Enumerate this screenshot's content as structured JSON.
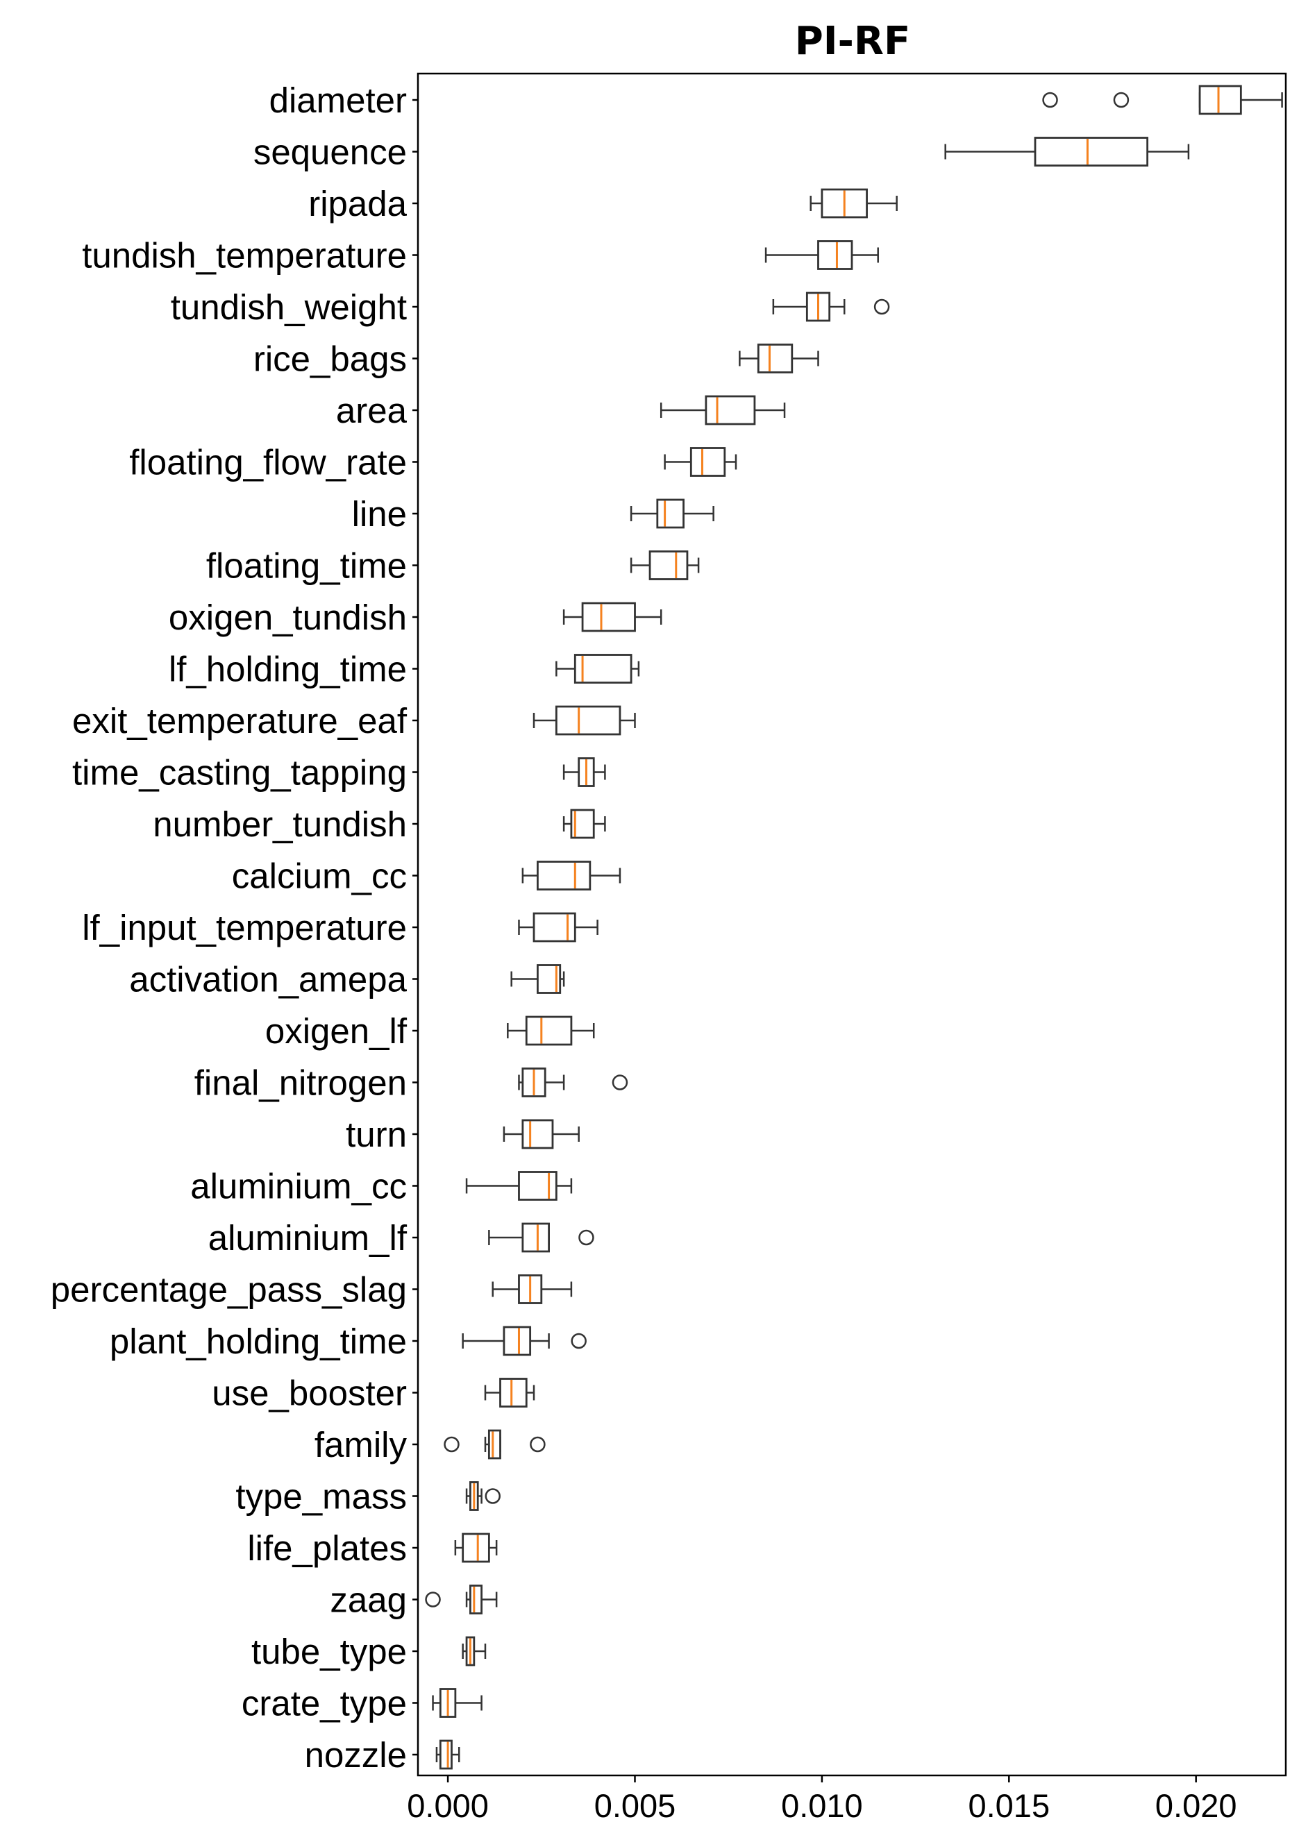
{
  "chart_data": {
    "type": "boxplot",
    "orientation": "horizontal",
    "title": "PI-RF",
    "xlabel": "",
    "ylabel": "",
    "xlim": [
      -0.0008,
      0.0224
    ],
    "x_ticks": [
      0.0,
      0.005,
      0.01,
      0.015,
      0.02
    ],
    "x_tick_labels": [
      "0.000",
      "0.005",
      "0.010",
      "0.015",
      "0.020"
    ],
    "grid": false,
    "colors": {
      "box": "#333333",
      "median": "#f5821f",
      "frame": "#000000"
    },
    "categories": [
      "diameter",
      "sequence",
      "ripada",
      "tundish_temperature",
      "tundish_weight",
      "rice_bags",
      "area",
      "floating_flow_rate",
      "line",
      "floating_time",
      "oxigen_tundish",
      "lf_holding_time",
      "exit_temperature_eaf",
      "time_casting_tapping",
      "number_tundish",
      "calcium_cc",
      "lf_input_temperature",
      "activation_amepa",
      "oxigen_lf",
      "final_nitrogen",
      "turn",
      "aluminium_cc",
      "aluminium_lf",
      "percentage_pass_slag",
      "plant_holding_time",
      "use_booster",
      "family",
      "type_mass",
      "life_plates",
      "zaag",
      "tube_type",
      "crate_type",
      "nozzle"
    ],
    "boxes": [
      {
        "label": "diameter",
        "whislo": 0.0201,
        "q1": 0.0201,
        "med": 0.0206,
        "q3": 0.0212,
        "whishi": 0.0223,
        "fliers": [
          0.0161,
          0.018
        ]
      },
      {
        "label": "sequence",
        "whislo": 0.0133,
        "q1": 0.0157,
        "med": 0.0171,
        "q3": 0.0187,
        "whishi": 0.0198,
        "fliers": []
      },
      {
        "label": "ripada",
        "whislo": 0.0097,
        "q1": 0.01,
        "med": 0.0106,
        "q3": 0.0112,
        "whishi": 0.012,
        "fliers": []
      },
      {
        "label": "tundish_temperature",
        "whislo": 0.0085,
        "q1": 0.0099,
        "med": 0.0104,
        "q3": 0.0108,
        "whishi": 0.0115,
        "fliers": []
      },
      {
        "label": "tundish_weight",
        "whislo": 0.0087,
        "q1": 0.0096,
        "med": 0.0099,
        "q3": 0.0102,
        "whishi": 0.0106,
        "fliers": [
          0.0116
        ]
      },
      {
        "label": "rice_bags",
        "whislo": 0.0078,
        "q1": 0.0083,
        "med": 0.0086,
        "q3": 0.0092,
        "whishi": 0.0099,
        "fliers": []
      },
      {
        "label": "area",
        "whislo": 0.0057,
        "q1": 0.0069,
        "med": 0.0072,
        "q3": 0.0082,
        "whishi": 0.009,
        "fliers": []
      },
      {
        "label": "floating_flow_rate",
        "whislo": 0.0058,
        "q1": 0.0065,
        "med": 0.0068,
        "q3": 0.0074,
        "whishi": 0.0077,
        "fliers": []
      },
      {
        "label": "line",
        "whislo": 0.0049,
        "q1": 0.0056,
        "med": 0.0058,
        "q3": 0.0063,
        "whishi": 0.0071,
        "fliers": []
      },
      {
        "label": "floating_time",
        "whislo": 0.0049,
        "q1": 0.0054,
        "med": 0.0061,
        "q3": 0.0064,
        "whishi": 0.0067,
        "fliers": []
      },
      {
        "label": "oxigen_tundish",
        "whislo": 0.0031,
        "q1": 0.0036,
        "med": 0.0041,
        "q3": 0.005,
        "whishi": 0.0057,
        "fliers": []
      },
      {
        "label": "lf_holding_time",
        "whislo": 0.0029,
        "q1": 0.0034,
        "med": 0.0036,
        "q3": 0.0049,
        "whishi": 0.0051,
        "fliers": []
      },
      {
        "label": "exit_temperature_eaf",
        "whislo": 0.0023,
        "q1": 0.0029,
        "med": 0.0035,
        "q3": 0.0046,
        "whishi": 0.005,
        "fliers": []
      },
      {
        "label": "time_casting_tapping",
        "whislo": 0.0031,
        "q1": 0.0035,
        "med": 0.0037,
        "q3": 0.0039,
        "whishi": 0.0042,
        "fliers": []
      },
      {
        "label": "number_tundish",
        "whislo": 0.0031,
        "q1": 0.0033,
        "med": 0.0034,
        "q3": 0.0039,
        "whishi": 0.0042,
        "fliers": []
      },
      {
        "label": "calcium_cc",
        "whislo": 0.002,
        "q1": 0.0024,
        "med": 0.0034,
        "q3": 0.0038,
        "whishi": 0.0046,
        "fliers": []
      },
      {
        "label": "lf_input_temperature",
        "whislo": 0.0019,
        "q1": 0.0023,
        "med": 0.0032,
        "q3": 0.0034,
        "whishi": 0.004,
        "fliers": []
      },
      {
        "label": "activation_amepa",
        "whislo": 0.0017,
        "q1": 0.0024,
        "med": 0.0029,
        "q3": 0.003,
        "whishi": 0.0031,
        "fliers": []
      },
      {
        "label": "oxigen_lf",
        "whislo": 0.0016,
        "q1": 0.0021,
        "med": 0.0025,
        "q3": 0.0033,
        "whishi": 0.0039,
        "fliers": []
      },
      {
        "label": "final_nitrogen",
        "whislo": 0.0019,
        "q1": 0.002,
        "med": 0.0023,
        "q3": 0.0026,
        "whishi": 0.0031,
        "fliers": [
          0.0046
        ]
      },
      {
        "label": "turn",
        "whislo": 0.0015,
        "q1": 0.002,
        "med": 0.0022,
        "q3": 0.0028,
        "whishi": 0.0035,
        "fliers": []
      },
      {
        "label": "aluminium_cc",
        "whislo": 0.0005,
        "q1": 0.0019,
        "med": 0.0027,
        "q3": 0.0029,
        "whishi": 0.0033,
        "fliers": []
      },
      {
        "label": "aluminium_lf",
        "whislo": 0.0011,
        "q1": 0.002,
        "med": 0.0024,
        "q3": 0.0027,
        "whishi": 0.0027,
        "fliers": [
          0.0037
        ]
      },
      {
        "label": "percentage_pass_slag",
        "whislo": 0.0012,
        "q1": 0.0019,
        "med": 0.0022,
        "q3": 0.0025,
        "whishi": 0.0033,
        "fliers": []
      },
      {
        "label": "plant_holding_time",
        "whislo": 0.0004,
        "q1": 0.0015,
        "med": 0.0019,
        "q3": 0.0022,
        "whishi": 0.0027,
        "fliers": [
          0.0035
        ]
      },
      {
        "label": "use_booster",
        "whislo": 0.001,
        "q1": 0.0014,
        "med": 0.0017,
        "q3": 0.0021,
        "whishi": 0.0023,
        "fliers": []
      },
      {
        "label": "family",
        "whislo": 0.001,
        "q1": 0.0011,
        "med": 0.0012,
        "q3": 0.0014,
        "whishi": 0.0014,
        "fliers": [
          0.0001,
          0.0024
        ]
      },
      {
        "label": "type_mass",
        "whislo": 0.0005,
        "q1": 0.0006,
        "med": 0.0007,
        "q3": 0.0008,
        "whishi": 0.0009,
        "fliers": [
          0.0012
        ]
      },
      {
        "label": "life_plates",
        "whislo": 0.0002,
        "q1": 0.0004,
        "med": 0.0008,
        "q3": 0.0011,
        "whishi": 0.0013,
        "fliers": []
      },
      {
        "label": "zaag",
        "whislo": 0.0005,
        "q1": 0.0006,
        "med": 0.0007,
        "q3": 0.0009,
        "whishi": 0.0013,
        "fliers": [
          -0.0004
        ]
      },
      {
        "label": "tube_type",
        "whislo": 0.0004,
        "q1": 0.0005,
        "med": 0.0006,
        "q3": 0.0007,
        "whishi": 0.001,
        "fliers": []
      },
      {
        "label": "crate_type",
        "whislo": -0.0004,
        "q1": -0.0002,
        "med": 0.0,
        "q3": 0.0002,
        "whishi": 0.0009,
        "fliers": []
      },
      {
        "label": "nozzle",
        "whislo": -0.0003,
        "q1": -0.0002,
        "med": 0.0,
        "q3": 0.0001,
        "whishi": 0.0003,
        "fliers": []
      }
    ]
  }
}
